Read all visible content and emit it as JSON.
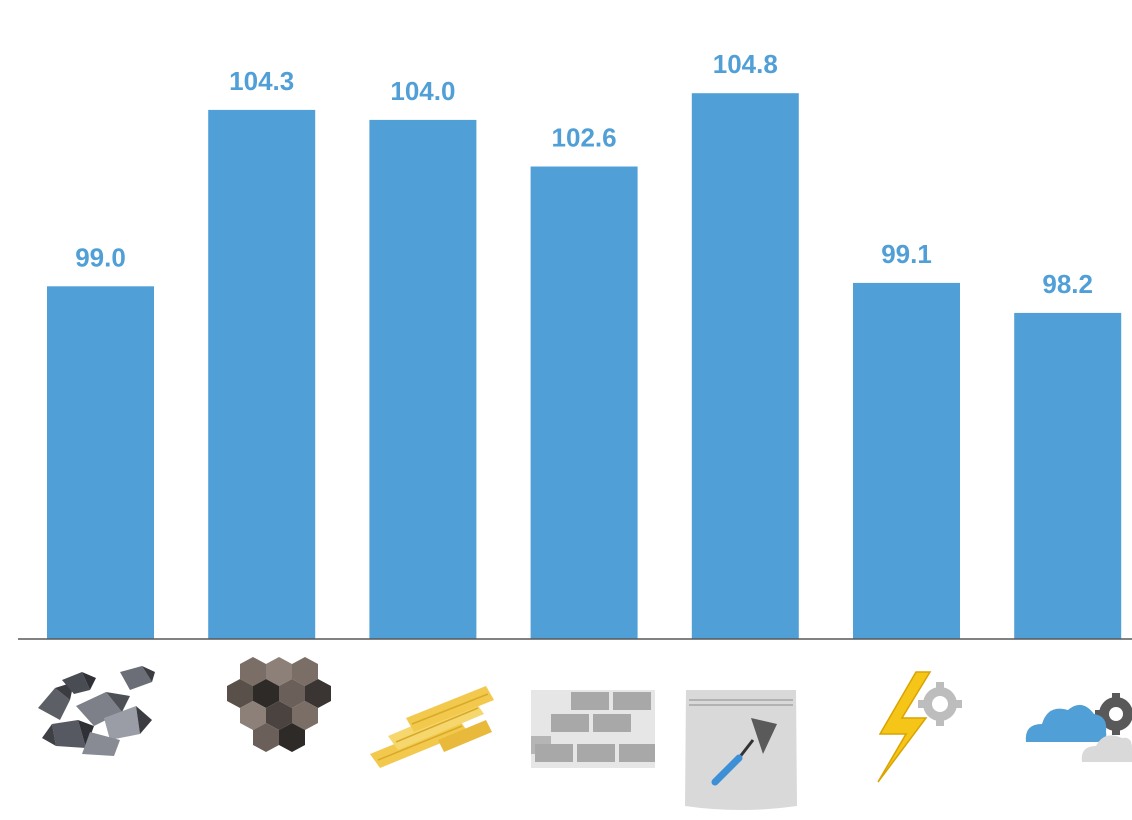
{
  "chart_data": {
    "type": "bar",
    "categories": [
      "stone-aggregate-icon",
      "coal-hexagon-icon",
      "wood-planks-icon",
      "bricks-icon",
      "cement-bag-trowel-icon",
      "electricity-gear-icon",
      "cloud-gear-icon"
    ],
    "values": [
      99.0,
      104.3,
      104.0,
      102.6,
      104.8,
      99.1,
      98.2
    ],
    "data_labels": [
      "99.0",
      "104.3",
      "104.0",
      "102.6",
      "104.8",
      "99.1",
      "98.2"
    ],
    "title": "",
    "xlabel": "",
    "ylabel": "",
    "ylim": [
      88.4,
      106.4
    ],
    "grid": false,
    "legend": "none",
    "colors": {
      "bar": "#519FD7",
      "label": "#519FD7",
      "axis": "#595959"
    }
  }
}
